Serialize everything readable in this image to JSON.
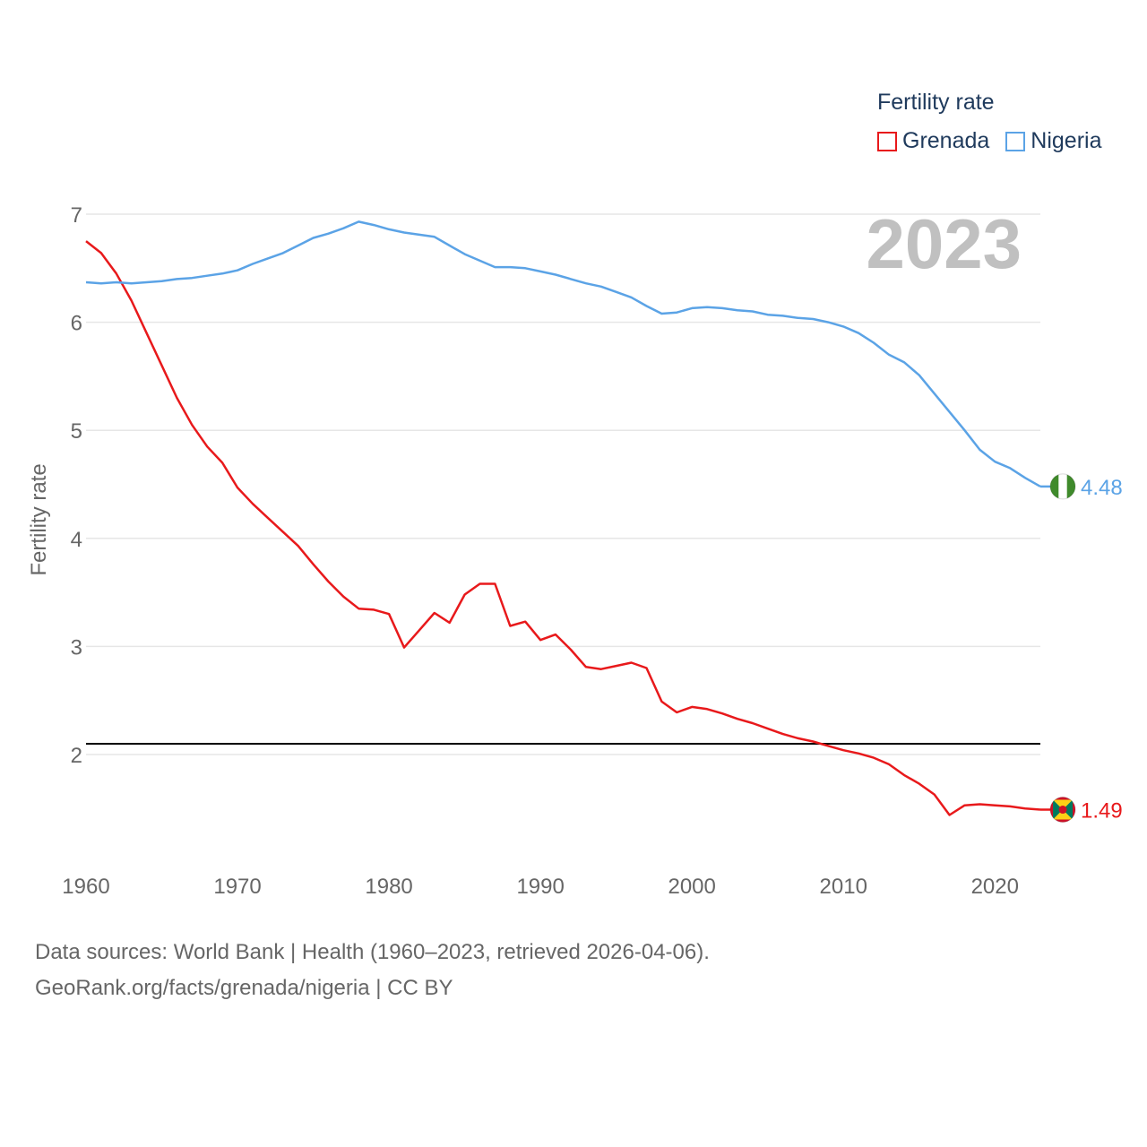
{
  "chart_data": {
    "type": "line",
    "year_label": "2023",
    "ylabel": "Fertility rate",
    "xlim": [
      1960,
      2023
    ],
    "ylim": [
      1.0,
      7.1
    ],
    "x_ticks": [
      "1960",
      "1970",
      "1980",
      "1990",
      "2000",
      "2010",
      "2020"
    ],
    "y_ticks": [
      "2",
      "3",
      "4",
      "5",
      "6",
      "7"
    ],
    "reference_line": 2.1,
    "legend": {
      "title": "Fertility rate",
      "position": "top-right"
    },
    "x": [
      1960,
      1961,
      1962,
      1963,
      1964,
      1965,
      1966,
      1967,
      1968,
      1969,
      1970,
      1971,
      1972,
      1973,
      1974,
      1975,
      1976,
      1977,
      1978,
      1979,
      1980,
      1981,
      1982,
      1983,
      1984,
      1985,
      1986,
      1987,
      1988,
      1989,
      1990,
      1991,
      1992,
      1993,
      1994,
      1995,
      1996,
      1997,
      1998,
      1999,
      2000,
      2001,
      2002,
      2003,
      2004,
      2005,
      2006,
      2007,
      2008,
      2009,
      2010,
      2011,
      2012,
      2013,
      2014,
      2015,
      2016,
      2017,
      2018,
      2019,
      2020,
      2021,
      2022,
      2023
    ],
    "series": [
      {
        "name": "Grenada",
        "color": "#e8191b",
        "end_label": "1.49",
        "values": [
          6.75,
          6.64,
          6.45,
          6.2,
          5.9,
          5.6,
          5.3,
          5.05,
          4.85,
          4.7,
          4.47,
          4.32,
          4.19,
          4.06,
          3.93,
          3.76,
          3.6,
          3.46,
          3.35,
          3.34,
          3.3,
          2.99,
          3.15,
          3.31,
          3.22,
          3.48,
          3.58,
          3.58,
          3.19,
          3.23,
          3.06,
          3.11,
          2.97,
          2.81,
          2.79,
          2.82,
          2.85,
          2.8,
          2.49,
          2.39,
          2.44,
          2.42,
          2.38,
          2.33,
          2.29,
          2.24,
          2.19,
          2.15,
          2.12,
          2.08,
          2.04,
          2.01,
          1.97,
          1.91,
          1.81,
          1.73,
          1.63,
          1.44,
          1.53,
          1.54,
          1.53,
          1.52,
          1.5,
          1.49
        ]
      },
      {
        "name": "Nigeria",
        "color": "#5ba3e6",
        "end_label": "4.48",
        "values": [
          6.37,
          6.36,
          6.37,
          6.36,
          6.37,
          6.38,
          6.4,
          6.41,
          6.43,
          6.45,
          6.48,
          6.54,
          6.59,
          6.64,
          6.71,
          6.78,
          6.82,
          6.87,
          6.93,
          6.9,
          6.86,
          6.83,
          6.81,
          6.79,
          6.71,
          6.63,
          6.57,
          6.51,
          6.51,
          6.5,
          6.47,
          6.44,
          6.4,
          6.36,
          6.33,
          6.28,
          6.23,
          6.15,
          6.08,
          6.09,
          6.13,
          6.14,
          6.13,
          6.11,
          6.1,
          6.07,
          6.06,
          6.04,
          6.03,
          6.0,
          5.96,
          5.9,
          5.81,
          5.7,
          5.63,
          5.51,
          5.34,
          5.17,
          5.0,
          4.82,
          4.71,
          4.65,
          4.56,
          4.48
        ]
      }
    ]
  },
  "footer": {
    "line1": "Data sources: World Bank | Health (1960–2023, retrieved 2026-04-06).",
    "line2": "GeoRank.org/facts/grenada/nigeria | CC BY"
  },
  "flags": {
    "nigeria": {
      "green": "#3f8a2b",
      "white": "#ffffff"
    },
    "grenada": {
      "red": "#ce1126",
      "yellow": "#fcd116",
      "green": "#007a5e"
    }
  }
}
